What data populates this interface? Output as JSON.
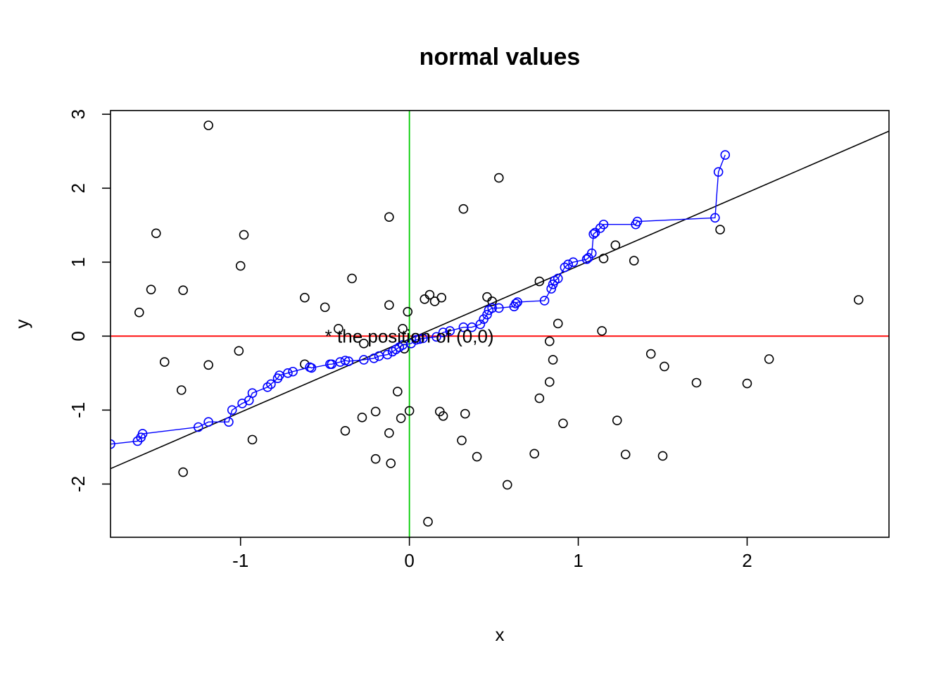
{
  "chart_data": {
    "type": "scatter",
    "title": "normal values",
    "xlabel": "x",
    "ylabel": "y",
    "xlim": [
      -1.77,
      2.84
    ],
    "ylim": [
      -2.72,
      3.05
    ],
    "x_ticks": [
      -1,
      0,
      1,
      2
    ],
    "y_ticks": [
      -2,
      -1,
      0,
      1,
      2,
      3
    ],
    "grid": false,
    "legend": "none",
    "series": [
      {
        "kind": "points",
        "color": "#000000",
        "points": [
          [
            -1.6,
            0.32
          ],
          [
            -1.53,
            0.63
          ],
          [
            -1.5,
            1.39
          ],
          [
            -1.45,
            -0.35
          ],
          [
            -1.35,
            -0.73
          ],
          [
            -1.34,
            0.62
          ],
          [
            -1.34,
            -1.84
          ],
          [
            -1.19,
            2.85
          ],
          [
            -1.19,
            -0.39
          ],
          [
            -1.01,
            -0.2
          ],
          [
            -1.0,
            0.95
          ],
          [
            -0.98,
            1.37
          ],
          [
            -0.93,
            -1.4
          ],
          [
            -0.62,
            0.52
          ],
          [
            -0.62,
            -0.38
          ],
          [
            -0.5,
            0.39
          ],
          [
            -0.42,
            0.1
          ],
          [
            -0.38,
            -1.28
          ],
          [
            -0.34,
            0.78
          ],
          [
            -0.28,
            -1.1
          ],
          [
            -0.27,
            -0.1
          ],
          [
            -0.2,
            -1.02
          ],
          [
            -0.2,
            -1.66
          ],
          [
            -0.12,
            1.61
          ],
          [
            -0.12,
            0.42
          ],
          [
            -0.12,
            -1.31
          ],
          [
            -0.11,
            -1.72
          ],
          [
            -0.07,
            -0.75
          ],
          [
            -0.05,
            -1.11
          ],
          [
            -0.04,
            0.1
          ],
          [
            -0.03,
            -0.17
          ],
          [
            -0.01,
            0.33
          ],
          [
            0.0,
            -1.01
          ],
          [
            0.09,
            0.5
          ],
          [
            0.11,
            -2.51
          ],
          [
            0.12,
            0.56
          ],
          [
            0.15,
            0.47
          ],
          [
            0.18,
            -1.02
          ],
          [
            0.19,
            0.52
          ],
          [
            0.2,
            -1.08
          ],
          [
            0.31,
            -1.41
          ],
          [
            0.32,
            1.72
          ],
          [
            0.33,
            -1.05
          ],
          [
            0.4,
            -1.63
          ],
          [
            0.46,
            0.53
          ],
          [
            0.49,
            0.47
          ],
          [
            0.53,
            2.14
          ],
          [
            0.58,
            -2.01
          ],
          [
            0.74,
            -1.59
          ],
          [
            0.77,
            0.74
          ],
          [
            0.77,
            -0.84
          ],
          [
            0.83,
            -0.07
          ],
          [
            0.83,
            -0.62
          ],
          [
            0.85,
            -0.32
          ],
          [
            0.88,
            0.17
          ],
          [
            0.91,
            -1.18
          ],
          [
            1.14,
            0.07
          ],
          [
            1.15,
            1.05
          ],
          [
            1.22,
            1.23
          ],
          [
            1.23,
            -1.14
          ],
          [
            1.28,
            -1.6
          ],
          [
            1.33,
            1.02
          ],
          [
            1.43,
            -0.24
          ],
          [
            1.5,
            -1.62
          ],
          [
            1.51,
            -0.41
          ],
          [
            1.7,
            -0.63
          ],
          [
            1.84,
            1.44
          ],
          [
            2.0,
            -0.64
          ],
          [
            2.13,
            -0.31
          ],
          [
            2.66,
            0.49
          ]
        ]
      },
      {
        "kind": "line-points",
        "color": "#0000ff",
        "points": [
          [
            -1.77,
            -1.46
          ],
          [
            -1.61,
            -1.42
          ],
          [
            -1.59,
            -1.37
          ],
          [
            -1.58,
            -1.32
          ],
          [
            -1.25,
            -1.23
          ],
          [
            -1.19,
            -1.16
          ],
          [
            -1.07,
            -1.16
          ],
          [
            -1.05,
            -1.0
          ],
          [
            -0.99,
            -0.91
          ],
          [
            -0.95,
            -0.87
          ],
          [
            -0.93,
            -0.77
          ],
          [
            -0.84,
            -0.69
          ],
          [
            -0.82,
            -0.65
          ],
          [
            -0.78,
            -0.57
          ],
          [
            -0.77,
            -0.53
          ],
          [
            -0.72,
            -0.5
          ],
          [
            -0.69,
            -0.48
          ],
          [
            -0.59,
            -0.42
          ],
          [
            -0.58,
            -0.43
          ],
          [
            -0.47,
            -0.38
          ],
          [
            -0.46,
            -0.38
          ],
          [
            -0.41,
            -0.35
          ],
          [
            -0.38,
            -0.33
          ],
          [
            -0.36,
            -0.34
          ],
          [
            -0.27,
            -0.32
          ],
          [
            -0.21,
            -0.3
          ],
          [
            -0.18,
            -0.27
          ],
          [
            -0.13,
            -0.25
          ],
          [
            -0.1,
            -0.21
          ],
          [
            -0.08,
            -0.18
          ],
          [
            -0.06,
            -0.15
          ],
          [
            -0.04,
            -0.12
          ],
          [
            0.01,
            -0.1
          ],
          [
            0.04,
            -0.05
          ],
          [
            0.06,
            -0.04
          ],
          [
            0.08,
            -0.03
          ],
          [
            0.16,
            -0.01
          ],
          [
            0.2,
            0.05
          ],
          [
            0.24,
            0.07
          ],
          [
            0.32,
            0.12
          ],
          [
            0.37,
            0.12
          ],
          [
            0.42,
            0.16
          ],
          [
            0.44,
            0.23
          ],
          [
            0.46,
            0.29
          ],
          [
            0.47,
            0.35
          ],
          [
            0.49,
            0.38
          ],
          [
            0.53,
            0.38
          ],
          [
            0.62,
            0.4
          ],
          [
            0.63,
            0.44
          ],
          [
            0.64,
            0.46
          ],
          [
            0.8,
            0.48
          ],
          [
            0.84,
            0.64
          ],
          [
            0.85,
            0.7
          ],
          [
            0.86,
            0.75
          ],
          [
            0.88,
            0.78
          ],
          [
            0.92,
            0.93
          ],
          [
            0.94,
            0.97
          ],
          [
            0.97,
            1.0
          ],
          [
            1.05,
            1.04
          ],
          [
            1.06,
            1.06
          ],
          [
            1.08,
            1.12
          ],
          [
            1.09,
            1.38
          ],
          [
            1.1,
            1.4
          ],
          [
            1.13,
            1.46
          ],
          [
            1.15,
            1.51
          ],
          [
            1.34,
            1.51
          ],
          [
            1.35,
            1.55
          ],
          [
            1.81,
            1.6
          ],
          [
            1.83,
            2.22
          ],
          [
            1.87,
            2.45
          ]
        ]
      },
      {
        "kind": "abline",
        "color": "#000000",
        "intercept": -0.04,
        "slope": 0.99
      },
      {
        "kind": "hline",
        "color": "#ff0000",
        "y": 0
      },
      {
        "kind": "vline",
        "color": "#00cc00",
        "x": 0
      }
    ],
    "annotation": {
      "text": "* the position of (0,0)",
      "x": 0,
      "y": 0
    }
  }
}
